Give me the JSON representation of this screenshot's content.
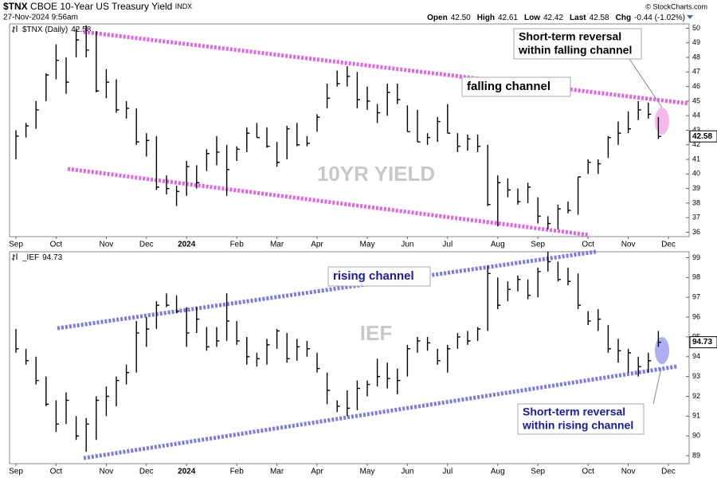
{
  "header": {
    "symbol": "$TNX",
    "name": "CBOE 10-Year US Treasury Yield",
    "exchange": "INDX",
    "date": "27-Nov-2024 9:56am",
    "quote": [
      {
        "label": "Open",
        "value": "42.50"
      },
      {
        "label": "High",
        "value": "42.61"
      },
      {
        "label": "Low",
        "value": "42.42"
      },
      {
        "label": "Last",
        "value": "42.58"
      },
      {
        "label": "Chg",
        "value": "-0.44 (-1.02%)"
      }
    ],
    "copyright": "© StockCharts.com"
  },
  "chart_data": [
    {
      "type": "ohlc",
      "legend_label": "$TNX (Daily)",
      "last": 42.58,
      "watermark": "10YR YIELD",
      "color": "#000000",
      "categories": [
        "Sep",
        null,
        null,
        null,
        "Oct",
        null,
        null,
        null,
        null,
        "Nov",
        null,
        null,
        null,
        "Dec",
        null,
        null,
        null,
        "2024",
        null,
        null,
        null,
        null,
        "Feb",
        null,
        null,
        null,
        "Mar",
        null,
        null,
        null,
        "Apr",
        null,
        null,
        null,
        null,
        "May",
        null,
        null,
        null,
        "Jun",
        null,
        null,
        null,
        "Jul",
        null,
        null,
        null,
        null,
        "Aug",
        null,
        null,
        null,
        "Sep",
        null,
        null,
        null,
        null,
        "Oct",
        null,
        null,
        null,
        "Nov",
        null,
        null,
        null,
        "Dec"
      ],
      "high": [
        43.0,
        43.5,
        45.0,
        46.9,
        48.9,
        48.0,
        50.0,
        50.2,
        49.8,
        47.2,
        46.5,
        45.0,
        44.5,
        42.8,
        42.6,
        39.9,
        39.2,
        40.9,
        40.6,
        41.7,
        42.6,
        42.0,
        41.9,
        43.2,
        43.5,
        43.2,
        42.2,
        43.3,
        43.5,
        42.6,
        44.1,
        46.2,
        47.1,
        47.4,
        47.0,
        46.0,
        44.8,
        46.2,
        46.2,
        44.7,
        44.4,
        42.8,
        43.9,
        44.8,
        42.8,
        42.7,
        42.7,
        42.0,
        39.9,
        39.7,
        39.0,
        39.4,
        38.4,
        37.1,
        37.9,
        38.1,
        39.8,
        41.0,
        41.0,
        42.6,
        43.6,
        44.3,
        45.0,
        44.9,
        43.9,
        null
      ],
      "low": [
        41.0,
        42.5,
        43.1,
        45.0,
        46.5,
        45.5,
        48.0,
        48.0,
        45.6,
        45.2,
        44.2,
        43.8,
        42.0,
        41.2,
        38.9,
        38.6,
        37.8,
        38.5,
        39.0,
        40.2,
        40.6,
        38.5,
        40.9,
        41.5,
        42.5,
        41.8,
        40.5,
        41.0,
        41.9,
        41.9,
        42.9,
        44.5,
        46.0,
        46.0,
        44.5,
        44.4,
        43.5,
        44.0,
        44.8,
        42.9,
        42.2,
        42.0,
        42.2,
        42.8,
        41.5,
        41.6,
        41.5,
        37.8,
        36.4,
        38.4,
        37.9,
        38.0,
        36.6,
        36.2,
        36.2,
        37.3,
        37.2,
        40.0,
        40.0,
        41.1,
        42.0,
        42.8,
        43.7,
        43.8,
        42.4,
        null
      ],
      "close": [
        42.6,
        43.3,
        44.4,
        46.8,
        47.8,
        46.3,
        49.2,
        48.5,
        45.7,
        46.3,
        44.4,
        44.5,
        42.2,
        42.3,
        39.1,
        39.0,
        38.8,
        40.5,
        39.4,
        41.4,
        41.5,
        40.3,
        41.7,
        42.8,
        42.5,
        41.9,
        40.8,
        43.1,
        42.0,
        42.1,
        43.9,
        45.2,
        46.2,
        46.7,
        45.1,
        45.0,
        44.2,
        45.6,
        45.1,
        42.9,
        42.2,
        42.5,
        43.6,
        42.8,
        41.9,
        42.4,
        41.9,
        37.9,
        39.4,
        38.9,
        38.1,
        39.1,
        37.1,
        36.6,
        37.6,
        37.5,
        39.8,
        40.8,
        40.7,
        42.5,
        42.8,
        43.1,
        44.4,
        44.1,
        42.58,
        null
      ],
      "ylim": [
        35.7,
        50.3
      ],
      "yticks": [
        36,
        37,
        38,
        39,
        40,
        41,
        42,
        43,
        44,
        45,
        46,
        47,
        48,
        49,
        50
      ],
      "annotations": [
        {
          "text": [
            "Short-term reversal",
            "within falling channel"
          ]
        },
        {
          "text": [
            "falling channel"
          ]
        }
      ]
    },
    {
      "type": "ohlc",
      "legend_label": "_IEF",
      "last": 94.73,
      "watermark": "IEF",
      "color": "#000000",
      "categories": [
        "Sep",
        null,
        null,
        null,
        "Oct",
        null,
        null,
        null,
        null,
        "Nov",
        null,
        null,
        null,
        "Dec",
        null,
        null,
        null,
        "2024",
        null,
        null,
        null,
        null,
        "Feb",
        null,
        null,
        null,
        "Mar",
        null,
        null,
        null,
        "Apr",
        null,
        null,
        null,
        null,
        "May",
        null,
        null,
        null,
        "Jun",
        null,
        null,
        null,
        "Jul",
        null,
        null,
        null,
        null,
        "Aug",
        null,
        null,
        null,
        "Sep",
        null,
        null,
        null,
        null,
        "Oct",
        null,
        null,
        null,
        "Nov",
        null,
        null,
        null,
        "Dec"
      ],
      "high": [
        95.4,
        94.4,
        94.0,
        93.0,
        91.8,
        92.2,
        91.0,
        90.9,
        92.0,
        92.5,
        93.0,
        93.6,
        95.8,
        96.0,
        96.8,
        97.2,
        97.1,
        96.5,
        96.5,
        95.5,
        95.5,
        97.2,
        95.8,
        95.0,
        94.2,
        94.9,
        95.4,
        95.2,
        94.9,
        94.8,
        94.2,
        93.2,
        91.8,
        92.3,
        92.8,
        92.8,
        93.9,
        93.7,
        93.4,
        94.6,
        95.0,
        95.0,
        94.4,
        94.6,
        95.2,
        95.3,
        95.5,
        98.6,
        98.0,
        97.8,
        98.1,
        97.9,
        98.5,
        99.3,
        98.8,
        98.5,
        98.2,
        96.3,
        96.4,
        95.6,
        94.9,
        94.4,
        94.0,
        94.2,
        95.3,
        null
      ],
      "low": [
        94.2,
        93.6,
        92.6,
        91.5,
        90.2,
        90.6,
        89.8,
        89.2,
        89.8,
        91.0,
        91.5,
        92.6,
        93.2,
        94.5,
        95.4,
        96.5,
        96.2,
        94.5,
        95.2,
        94.3,
        94.5,
        94.8,
        94.6,
        93.6,
        93.5,
        93.6,
        94.4,
        93.7,
        93.8,
        94.0,
        93.2,
        91.6,
        91.2,
        91.0,
        91.3,
        92.0,
        92.5,
        92.4,
        92.1,
        93.0,
        94.2,
        94.3,
        93.6,
        93.2,
        94.4,
        94.6,
        94.8,
        95.3,
        96.4,
        96.8,
        97.3,
        96.9,
        97.0,
        98.3,
        97.8,
        97.6,
        96.4,
        95.6,
        95.3,
        94.2,
        93.7,
        93.2,
        93.0,
        93.2,
        94.5,
        null
      ],
      "close": [
        94.4,
        93.8,
        92.8,
        91.6,
        90.6,
        91.8,
        90.0,
        90.6,
        91.8,
        92.0,
        92.8,
        93.2,
        95.2,
        95.4,
        96.6,
        96.6,
        96.3,
        95.2,
        95.9,
        94.5,
        94.8,
        95.8,
        94.8,
        94.0,
        93.9,
        94.6,
        95.3,
        93.9,
        94.5,
        94.4,
        93.4,
        92.3,
        91.5,
        91.4,
        92.4,
        92.6,
        93.0,
        92.9,
        92.8,
        94.4,
        94.8,
        94.7,
        93.8,
        94.4,
        95.0,
        94.8,
        95.4,
        98.2,
        96.6,
        97.4,
        97.9,
        97.1,
        98.3,
        98.8,
        97.9,
        97.8,
        96.6,
        95.8,
        95.9,
        94.4,
        94.3,
        94.2,
        93.5,
        93.8,
        94.73,
        null
      ],
      "ylim": [
        88.6,
        99.3
      ],
      "yticks": [
        89,
        90,
        91,
        92,
        93,
        94,
        95,
        96,
        97,
        98,
        99
      ],
      "annotations": [
        {
          "text": [
            "rising channel"
          ]
        },
        {
          "text": [
            "Short-term reversal",
            "within rising channel"
          ]
        }
      ]
    }
  ]
}
